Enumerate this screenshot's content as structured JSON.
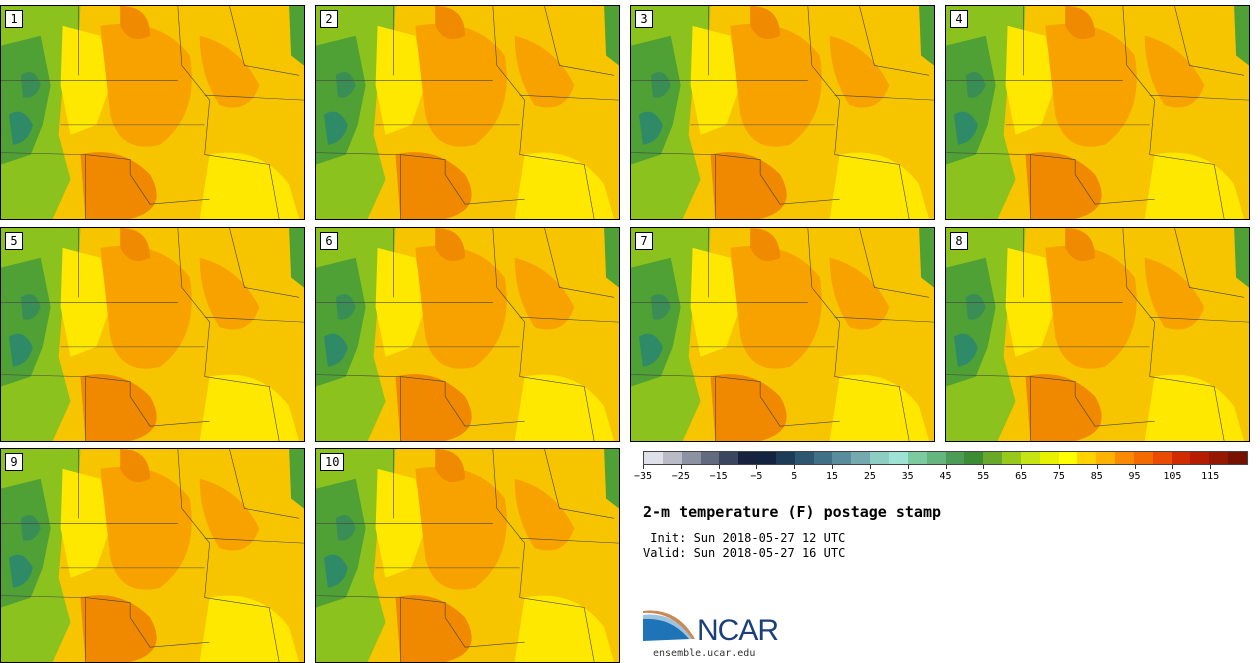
{
  "panels": [
    {
      "label": "1"
    },
    {
      "label": "2"
    },
    {
      "label": "3"
    },
    {
      "label": "4"
    },
    {
      "label": "5"
    },
    {
      "label": "6"
    },
    {
      "label": "7"
    },
    {
      "label": "8"
    },
    {
      "label": "9"
    },
    {
      "label": "10"
    }
  ],
  "colorbar": {
    "colors": [
      "#dfe1e8",
      "#b9bcc6",
      "#8d92a2",
      "#626a80",
      "#3a4560",
      "#17223e",
      "#12243f",
      "#1d3c57",
      "#2e5670",
      "#416f86",
      "#5a8d9b",
      "#73a9af",
      "#8ecdc4",
      "#9ee2d3",
      "#7ccba0",
      "#64b57e",
      "#4a9c57",
      "#3b8c34",
      "#6aa82a",
      "#97c91d",
      "#c6e316",
      "#e8f200",
      "#ffff00",
      "#ffd200",
      "#ffb300",
      "#fa8a00",
      "#f26a00",
      "#e94b00",
      "#d12b00",
      "#b41d00",
      "#961800",
      "#781200"
    ],
    "tick_labels": [
      "−35",
      "−25",
      "−15",
      "−5",
      "5",
      "15",
      "25",
      "35",
      "45",
      "55",
      "65",
      "75",
      "85",
      "95",
      "105",
      "115"
    ]
  },
  "title": "2-m temperature (F) postage stamp",
  "init": " Init: Sun 2018-05-27 12 UTC",
  "valid": "Valid: Sun 2018-05-27 16 UTC",
  "logo": {
    "text": "NCAR",
    "url": "ensemble.ucar.edu"
  }
}
